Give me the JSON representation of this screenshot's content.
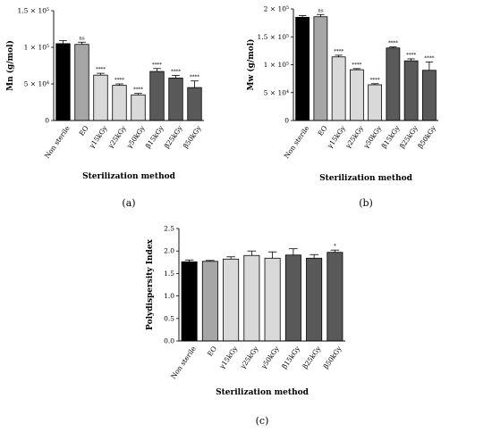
{
  "chart_data": [
    {
      "type": "bar",
      "panel_label": "(a)",
      "ylabel": "Mn (g/mol)",
      "xlabel": "Sterilization method",
      "categories": [
        "Non sterile",
        "EO",
        "γ15kGy",
        "γ25kGy",
        "γ50kGy",
        "β15kGy",
        "β25kGy",
        "β50kGy"
      ],
      "values": [
        105000,
        104000,
        62000,
        48000,
        35000,
        67000,
        58000,
        45000
      ],
      "errors": [
        4000,
        3000,
        2500,
        2000,
        2000,
        4000,
        3500,
        9000
      ],
      "significance": [
        "",
        "ns",
        "****",
        "****",
        "****",
        "****",
        "****",
        "****"
      ],
      "ylim": [
        0,
        150000
      ],
      "yticks": [
        0,
        50000,
        100000,
        150000
      ],
      "ytick_labels": [
        "0",
        "5 × 10⁴",
        "1 × 10⁵",
        "1.5 × 10⁵"
      ],
      "bar_colors": [
        "#000000",
        "#a6a6a6",
        "#d9d9d9",
        "#d9d9d9",
        "#d9d9d9",
        "#595959",
        "#595959",
        "#595959"
      ]
    },
    {
      "type": "bar",
      "panel_label": "(b)",
      "ylabel": "Mw (g/mol)",
      "xlabel": "Sterilization method",
      "categories": [
        "Non sterile",
        "EO",
        "γ15kGy",
        "γ25kGy",
        "γ50kGy",
        "β15kGy",
        "β25kGy",
        "β50kGy"
      ],
      "values": [
        185000,
        186000,
        114000,
        91000,
        64000,
        130000,
        107000,
        90000
      ],
      "errors": [
        3000,
        4000,
        3000,
        2000,
        2000,
        2000,
        3500,
        15000
      ],
      "significance": [
        "",
        "ns",
        "****",
        "****",
        "****",
        "****",
        "****",
        "****"
      ],
      "ylim": [
        0,
        200000
      ],
      "yticks": [
        0,
        50000,
        100000,
        150000,
        200000
      ],
      "ytick_labels": [
        "0",
        "5 × 10⁴",
        "1 × 10⁵",
        "1.5 × 10⁵",
        "2 × 10⁵"
      ],
      "bar_colors": [
        "#000000",
        "#a6a6a6",
        "#d9d9d9",
        "#d9d9d9",
        "#d9d9d9",
        "#595959",
        "#595959",
        "#595959"
      ]
    },
    {
      "type": "bar",
      "panel_label": "(c)",
      "ylabel": "Polydispersity Index",
      "xlabel": "Sterilization method",
      "categories": [
        "Non sterile",
        "EO",
        "γ15kGy",
        "γ25kGy",
        "γ50kGy",
        "β15kGy",
        "β25kGy",
        "β50kGy"
      ],
      "values": [
        1.76,
        1.77,
        1.82,
        1.9,
        1.84,
        1.91,
        1.84,
        1.97
      ],
      "errors": [
        0.04,
        0.02,
        0.05,
        0.1,
        0.14,
        0.14,
        0.08,
        0.05
      ],
      "significance": [
        "",
        "",
        "",
        "",
        "",
        "",
        "",
        "*"
      ],
      "ylim": [
        0,
        2.5
      ],
      "yticks": [
        0,
        0.5,
        1.0,
        1.5,
        2.0,
        2.5
      ],
      "ytick_labels": [
        "0.0",
        "0.5",
        "1.0",
        "1.5",
        "2.0",
        "2.5"
      ],
      "bar_colors": [
        "#000000",
        "#a6a6a6",
        "#d9d9d9",
        "#d9d9d9",
        "#d9d9d9",
        "#595959",
        "#595959",
        "#595959"
      ]
    }
  ]
}
